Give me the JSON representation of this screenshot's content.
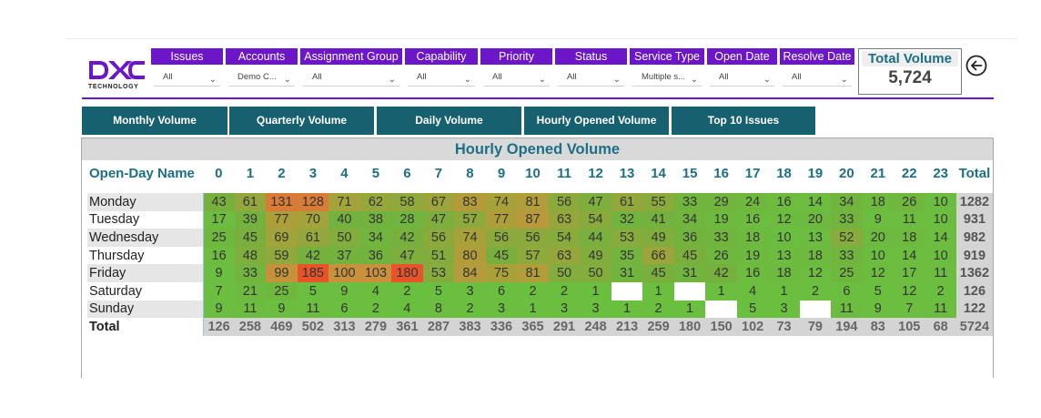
{
  "logo": {
    "brand": "DXC",
    "word": "TECHNOLOGY"
  },
  "filters": [
    {
      "label": "Issues",
      "value": "All"
    },
    {
      "label": "Accounts",
      "value": "Demo C..."
    },
    {
      "label": "Assignment Group",
      "value": "All"
    },
    {
      "label": "Capability",
      "value": "All"
    },
    {
      "label": "Priority",
      "value": "All"
    },
    {
      "label": "Status",
      "value": "All"
    },
    {
      "label": "Service Type",
      "value": "Multiple s..."
    },
    {
      "label": "Open Date",
      "value": "All"
    },
    {
      "label": "Resolve Date",
      "value": "All"
    }
  ],
  "total_volume": {
    "label": "Total Volume",
    "value": "5,724"
  },
  "tabs": [
    "Monthly Volume",
    "Quarterly Volume",
    "Daily Volume",
    "Hourly Opened Volume",
    "Top 10 Issues"
  ],
  "matrix": {
    "title": "Hourly Opened Volume",
    "row_header": "Open-Day Name",
    "hours": [
      "0",
      "1",
      "2",
      "3",
      "4",
      "5",
      "6",
      "7",
      "8",
      "9",
      "10",
      "11",
      "12",
      "13",
      "14",
      "15",
      "16",
      "17",
      "18",
      "19",
      "20",
      "21",
      "22",
      "23"
    ],
    "total_label": "Total",
    "rows": [
      {
        "day": "Monday",
        "values": [
          43,
          61,
          131,
          128,
          71,
          62,
          58,
          67,
          83,
          74,
          81,
          56,
          47,
          61,
          55,
          33,
          29,
          24,
          16,
          14,
          34,
          18,
          26,
          10
        ],
        "total": "1282"
      },
      {
        "day": "Tuesday",
        "values": [
          17,
          39,
          77,
          70,
          40,
          38,
          28,
          47,
          57,
          77,
          87,
          63,
          54,
          32,
          41,
          34,
          19,
          16,
          12,
          20,
          33,
          9,
          11,
          10
        ],
        "total": "931"
      },
      {
        "day": "Wednesday",
        "values": [
          25,
          45,
          69,
          61,
          50,
          34,
          42,
          56,
          74,
          56,
          56,
          54,
          44,
          53,
          49,
          36,
          33,
          18,
          10,
          13,
          52,
          20,
          18,
          14
        ],
        "total": "982"
      },
      {
        "day": "Thursday",
        "values": [
          16,
          48,
          59,
          42,
          37,
          36,
          47,
          51,
          80,
          45,
          57,
          63,
          49,
          35,
          66,
          45,
          26,
          19,
          13,
          18,
          33,
          10,
          14,
          10
        ],
        "total": "919"
      },
      {
        "day": "Friday",
        "values": [
          9,
          33,
          99,
          185,
          100,
          103,
          180,
          53,
          84,
          75,
          81,
          50,
          50,
          31,
          45,
          31,
          42,
          16,
          18,
          12,
          25,
          12,
          17,
          11
        ],
        "total": "1362"
      },
      {
        "day": "Saturday",
        "values": [
          7,
          21,
          25,
          5,
          9,
          4,
          2,
          5,
          3,
          6,
          2,
          2,
          1,
          null,
          1,
          null,
          1,
          4,
          1,
          2,
          6,
          5,
          12,
          2
        ],
        "total": "126"
      },
      {
        "day": "Sunday",
        "values": [
          9,
          11,
          9,
          11,
          6,
          2,
          4,
          8,
          2,
          3,
          1,
          3,
          3,
          1,
          2,
          1,
          null,
          5,
          3,
          null,
          11,
          9,
          7,
          11
        ],
        "total": "122"
      }
    ],
    "column_totals": [
      "126",
      "258",
      "469",
      "502",
      "313",
      "279",
      "361",
      "287",
      "383",
      "336",
      "365",
      "291",
      "248",
      "213",
      "259",
      "180",
      "150",
      "102",
      "73",
      "79",
      "194",
      "83",
      "105",
      "68"
    ],
    "grand_total": "5724"
  },
  "colors": {
    "accent_purple": "#6c16c9",
    "tab_teal": "#17606f",
    "title_teal": "#1d6f86",
    "heat_low": "#6abf3f",
    "heat_mid": "#c99a3a",
    "heat_high": "#e8532a"
  }
}
